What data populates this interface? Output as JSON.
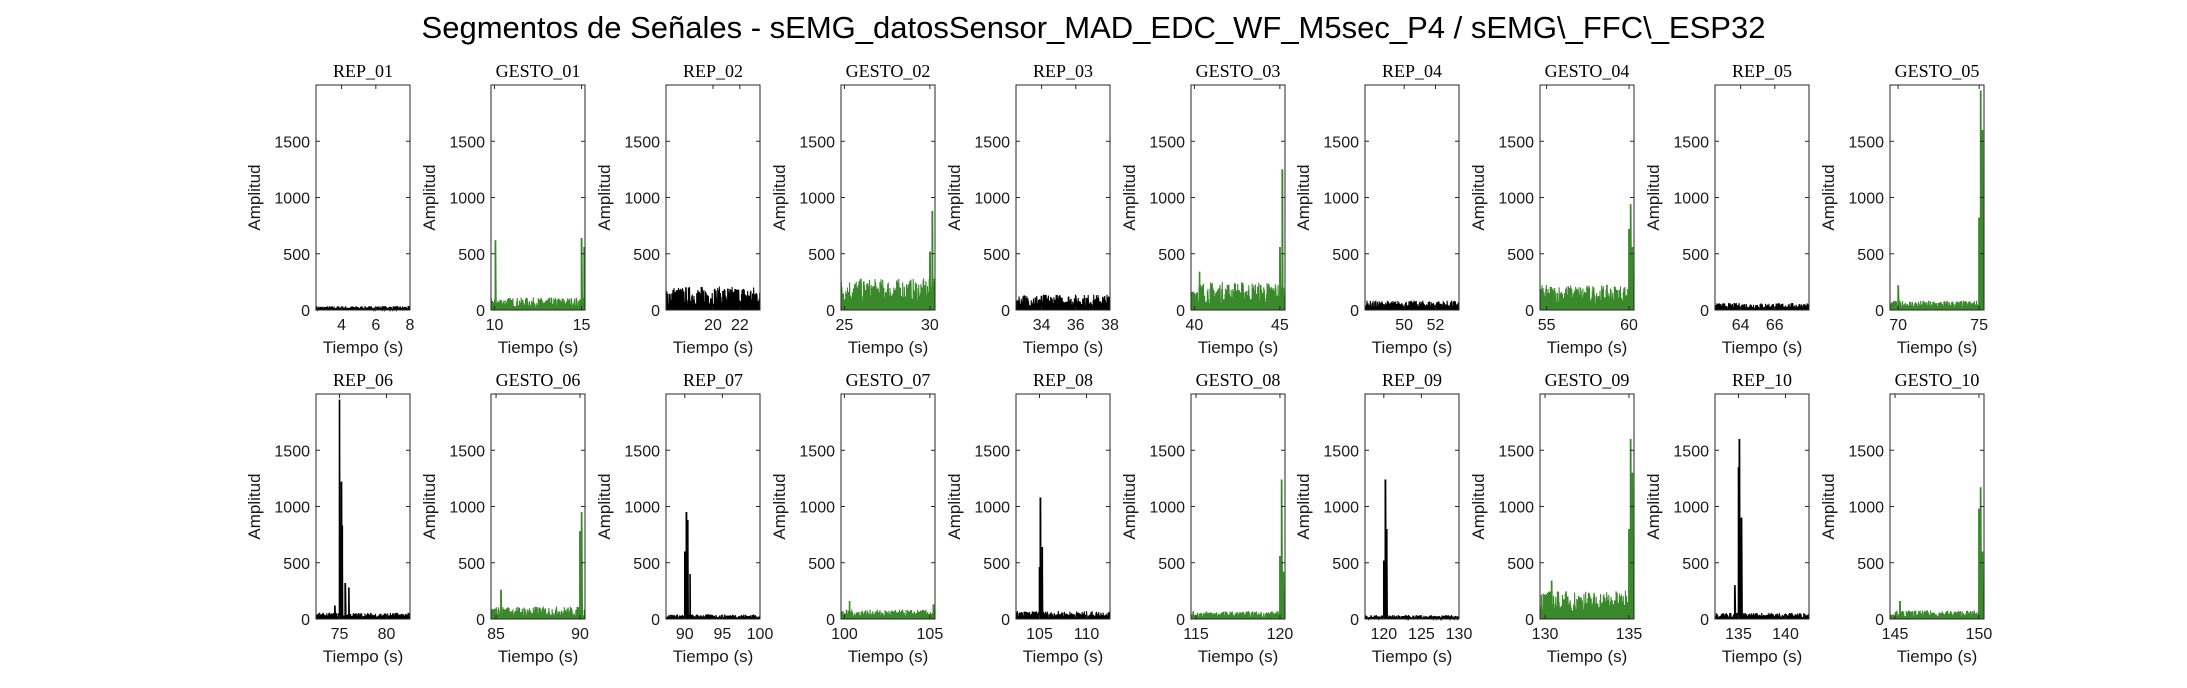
{
  "figure": {
    "title": "Segmentos de Señales - sEMG_datosSensor_MAD_EDC_WF_M5sec_P4 / sEMG\\_FFC\\_ESP32",
    "colors": {
      "rep": "#000000",
      "gesto": "#3a8a2c",
      "axes": "#262626"
    }
  },
  "chart_data": [
    {
      "type": "line",
      "title": "REP_01",
      "xlabel": "Tiempo (s)",
      "ylabel": "Amplitud",
      "xlim": [
        2.5,
        8
      ],
      "ylim": [
        0,
        2000
      ],
      "xticks": [
        4,
        6,
        8
      ],
      "yticks": [
        0,
        500,
        1000,
        1500
      ],
      "kind": "rep",
      "level": 25,
      "peaks": []
    },
    {
      "type": "line",
      "title": "GESTO_01",
      "xlabel": "Tiempo (s)",
      "ylabel": "Amplitud",
      "xlim": [
        9.8,
        15.2
      ],
      "ylim": [
        0,
        2000
      ],
      "xticks": [
        10,
        15
      ],
      "yticks": [
        0,
        500,
        1000,
        1500
      ],
      "kind": "gesto",
      "level": 80,
      "peaks": [
        {
          "x": 10.05,
          "y": 620
        },
        {
          "x": 15.0,
          "y": 640
        },
        {
          "x": 15.15,
          "y": 560
        }
      ]
    },
    {
      "type": "line",
      "title": "REP_02",
      "xlabel": "Tiempo (s)",
      "ylabel": "Amplitud",
      "xlim": [
        16.5,
        23.5
      ],
      "ylim": [
        0,
        2000
      ],
      "xticks": [
        20,
        22
      ],
      "yticks": [
        0,
        500,
        1000,
        1500
      ],
      "kind": "rep",
      "level": 150,
      "peaks": []
    },
    {
      "type": "line",
      "title": "GESTO_02",
      "xlabel": "Tiempo (s)",
      "ylabel": "Amplitud",
      "xlim": [
        24.8,
        30.3
      ],
      "ylim": [
        0,
        2000
      ],
      "xticks": [
        25,
        30
      ],
      "yticks": [
        0,
        500,
        1000,
        1500
      ],
      "kind": "gesto",
      "level": 200,
      "peaks": [
        {
          "x": 30.15,
          "y": 880
        },
        {
          "x": 30.0,
          "y": 520
        }
      ]
    },
    {
      "type": "line",
      "title": "REP_03",
      "xlabel": "Tiempo (s)",
      "ylabel": "Amplitud",
      "xlim": [
        32.5,
        38
      ],
      "ylim": [
        0,
        2000
      ],
      "xticks": [
        34,
        36,
        38
      ],
      "yticks": [
        0,
        500,
        1000,
        1500
      ],
      "kind": "rep",
      "level": 100,
      "peaks": []
    },
    {
      "type": "line",
      "title": "GESTO_03",
      "xlabel": "Tiempo (s)",
      "ylabel": "Amplitud",
      "xlim": [
        39.8,
        45.3
      ],
      "ylim": [
        0,
        2000
      ],
      "xticks": [
        40,
        45
      ],
      "yticks": [
        0,
        500,
        1000,
        1500
      ],
      "kind": "gesto",
      "level": 180,
      "peaks": [
        {
          "x": 45.15,
          "y": 1250
        },
        {
          "x": 45.0,
          "y": 560
        },
        {
          "x": 40.3,
          "y": 340
        }
      ]
    },
    {
      "type": "line",
      "title": "REP_04",
      "xlabel": "Tiempo (s)",
      "ylabel": "Amplitud",
      "xlim": [
        47.5,
        53.5
      ],
      "ylim": [
        0,
        2000
      ],
      "xticks": [
        50,
        52
      ],
      "yticks": [
        0,
        500,
        1000,
        1500
      ],
      "kind": "rep",
      "level": 60,
      "peaks": []
    },
    {
      "type": "line",
      "title": "GESTO_04",
      "xlabel": "Tiempo (s)",
      "ylabel": "Amplitud",
      "xlim": [
        54.6,
        60.3
      ],
      "ylim": [
        0,
        2000
      ],
      "xticks": [
        55,
        60
      ],
      "yticks": [
        0,
        500,
        1000,
        1500
      ],
      "kind": "gesto",
      "level": 160,
      "peaks": [
        {
          "x": 60.1,
          "y": 940
        },
        {
          "x": 60.0,
          "y": 720
        },
        {
          "x": 60.2,
          "y": 560
        }
      ]
    },
    {
      "type": "line",
      "title": "REP_05",
      "xlabel": "Tiempo (s)",
      "ylabel": "Amplitud",
      "xlim": [
        62.5,
        68
      ],
      "ylim": [
        0,
        2000
      ],
      "xticks": [
        64,
        66
      ],
      "yticks": [
        0,
        500,
        1000,
        1500
      ],
      "kind": "rep",
      "level": 45,
      "peaks": []
    },
    {
      "type": "line",
      "title": "GESTO_05",
      "xlabel": "Tiempo (s)",
      "ylabel": "Amplitud",
      "xlim": [
        69.5,
        75.3
      ],
      "ylim": [
        0,
        2000
      ],
      "xticks": [
        70,
        75
      ],
      "yticks": [
        0,
        500,
        1000,
        1500
      ],
      "kind": "gesto",
      "level": 60,
      "peaks": [
        {
          "x": 75.1,
          "y": 1950
        },
        {
          "x": 75.2,
          "y": 1600
        },
        {
          "x": 75.0,
          "y": 820
        },
        {
          "x": 70.0,
          "y": 220
        }
      ]
    },
    {
      "type": "line",
      "title": "REP_06",
      "xlabel": "Tiempo (s)",
      "ylabel": "Amplitud",
      "xlim": [
        72.5,
        82.5
      ],
      "ylim": [
        0,
        2000
      ],
      "xticks": [
        75,
        80
      ],
      "yticks": [
        0,
        500,
        1000,
        1500
      ],
      "kind": "rep",
      "level": 40,
      "peaks": [
        {
          "x": 75.0,
          "y": 1950
        },
        {
          "x": 75.2,
          "y": 1220
        },
        {
          "x": 75.3,
          "y": 830
        },
        {
          "x": 75.6,
          "y": 320
        },
        {
          "x": 76.0,
          "y": 280
        },
        {
          "x": 74.5,
          "y": 120
        }
      ]
    },
    {
      "type": "line",
      "title": "GESTO_06",
      "xlabel": "Tiempo (s)",
      "ylabel": "Amplitud",
      "xlim": [
        84.7,
        90.3
      ],
      "ylim": [
        0,
        2000
      ],
      "xticks": [
        85,
        90
      ],
      "yticks": [
        0,
        500,
        1000,
        1500
      ],
      "kind": "gesto",
      "level": 80,
      "peaks": [
        {
          "x": 90.1,
          "y": 950
        },
        {
          "x": 90.0,
          "y": 780
        },
        {
          "x": 85.3,
          "y": 260
        }
      ]
    },
    {
      "type": "line",
      "title": "REP_07",
      "xlabel": "Tiempo (s)",
      "ylabel": "Amplitud",
      "xlim": [
        87.5,
        100
      ],
      "ylim": [
        0,
        2000
      ],
      "xticks": [
        90,
        95,
        100
      ],
      "yticks": [
        0,
        500,
        1000,
        1500
      ],
      "kind": "rep",
      "level": 30,
      "peaks": [
        {
          "x": 90.2,
          "y": 950
        },
        {
          "x": 90.4,
          "y": 880
        },
        {
          "x": 90.0,
          "y": 600
        },
        {
          "x": 90.7,
          "y": 400
        }
      ]
    },
    {
      "type": "line",
      "title": "GESTO_07",
      "xlabel": "Tiempo (s)",
      "ylabel": "Amplitud",
      "xlim": [
        99.8,
        105.3
      ],
      "ylim": [
        0,
        2000
      ],
      "xticks": [
        100,
        105
      ],
      "yticks": [
        0,
        500,
        1000,
        1500
      ],
      "kind": "gesto",
      "level": 60,
      "peaks": [
        {
          "x": 105.2,
          "y": 130
        },
        {
          "x": 100.3,
          "y": 160
        }
      ]
    },
    {
      "type": "line",
      "title": "REP_08",
      "xlabel": "Tiempo (s)",
      "ylabel": "Amplitud",
      "xlim": [
        102.5,
        112.5
      ],
      "ylim": [
        0,
        2000
      ],
      "xticks": [
        105,
        110
      ],
      "yticks": [
        0,
        500,
        1000,
        1500
      ],
      "kind": "rep",
      "level": 50,
      "peaks": [
        {
          "x": 105.1,
          "y": 1080
        },
        {
          "x": 105.3,
          "y": 640
        },
        {
          "x": 105.0,
          "y": 460
        }
      ]
    },
    {
      "type": "line",
      "title": "GESTO_08",
      "xlabel": "Tiempo (s)",
      "ylabel": "Amplitud",
      "xlim": [
        114.7,
        120.3
      ],
      "ylim": [
        0,
        2000
      ],
      "xticks": [
        115,
        120
      ],
      "yticks": [
        0,
        500,
        1000,
        1500
      ],
      "kind": "gesto",
      "level": 50,
      "peaks": [
        {
          "x": 120.1,
          "y": 1240
        },
        {
          "x": 120.0,
          "y": 560
        },
        {
          "x": 120.2,
          "y": 420
        }
      ]
    },
    {
      "type": "line",
      "title": "REP_09",
      "xlabel": "Tiempo (s)",
      "ylabel": "Amplitud",
      "xlim": [
        117.5,
        130
      ],
      "ylim": [
        0,
        2000
      ],
      "xticks": [
        120,
        125,
        130
      ],
      "yticks": [
        0,
        500,
        1000,
        1500
      ],
      "kind": "rep",
      "level": 25,
      "peaks": [
        {
          "x": 120.2,
          "y": 1240
        },
        {
          "x": 120.4,
          "y": 800
        },
        {
          "x": 120.0,
          "y": 520
        }
      ]
    },
    {
      "type": "line",
      "title": "GESTO_09",
      "xlabel": "Tiempo (s)",
      "ylabel": "Amplitud",
      "xlim": [
        129.7,
        135.3
      ],
      "ylim": [
        0,
        2000
      ],
      "xticks": [
        130,
        135
      ],
      "yticks": [
        0,
        500,
        1000,
        1500
      ],
      "kind": "gesto",
      "level": 180,
      "peaks": [
        {
          "x": 135.1,
          "y": 1600
        },
        {
          "x": 135.2,
          "y": 1300
        },
        {
          "x": 135.0,
          "y": 800
        },
        {
          "x": 130.4,
          "y": 340
        }
      ]
    },
    {
      "type": "line",
      "title": "REP_10",
      "xlabel": "Tiempo (s)",
      "ylabel": "Amplitud",
      "xlim": [
        132.5,
        142.5
      ],
      "ylim": [
        0,
        2000
      ],
      "xticks": [
        135,
        140
      ],
      "yticks": [
        0,
        500,
        1000,
        1500
      ],
      "kind": "rep",
      "level": 40,
      "peaks": [
        {
          "x": 135.1,
          "y": 1600
        },
        {
          "x": 135.0,
          "y": 1350
        },
        {
          "x": 135.3,
          "y": 900
        },
        {
          "x": 134.6,
          "y": 300
        }
      ]
    },
    {
      "type": "line",
      "title": "GESTO_10",
      "xlabel": "Tiempo (s)",
      "ylabel": "Amplitud",
      "xlim": [
        144.7,
        150.3
      ],
      "ylim": [
        0,
        2000
      ],
      "xticks": [
        145,
        150
      ],
      "yticks": [
        0,
        500,
        1000,
        1500
      ],
      "kind": "gesto",
      "level": 55,
      "peaks": [
        {
          "x": 150.1,
          "y": 1170
        },
        {
          "x": 150.0,
          "y": 980
        },
        {
          "x": 150.2,
          "y": 600
        },
        {
          "x": 145.3,
          "y": 160
        }
      ]
    }
  ]
}
